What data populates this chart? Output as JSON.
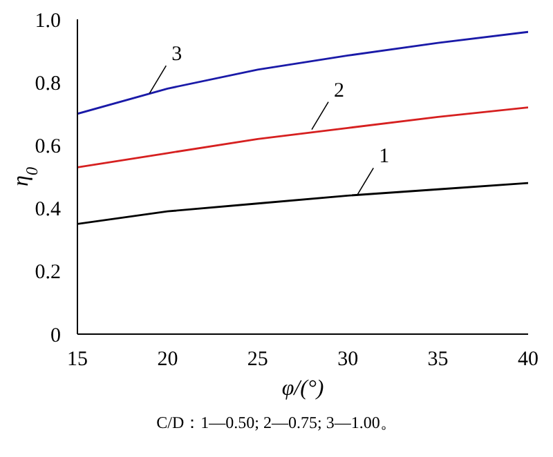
{
  "chart_data": {
    "type": "line",
    "xlabel": "φ/(°)",
    "ylabel": "η$_{0}$",
    "x": [
      15,
      20,
      25,
      30,
      35,
      40
    ],
    "series": [
      {
        "color": "#000000",
        "values": [
          0.35,
          0.39,
          0.415,
          0.44,
          0.46,
          0.48
        ]
      },
      {
        "color": "#d62020",
        "values": [
          0.53,
          0.575,
          0.62,
          0.655,
          0.69,
          0.72
        ]
      },
      {
        "color": "#1a1aa8",
        "values": [
          0.7,
          0.78,
          0.84,
          0.885,
          0.925,
          0.96
        ]
      }
    ],
    "xlim": [
      15,
      40
    ],
    "xticks": [
      15,
      20,
      25,
      30,
      35,
      40
    ],
    "ylim": [
      0,
      1
    ],
    "yticks": [
      0,
      0.2,
      0.4,
      0.6,
      0.8,
      {
        "value": 1,
        "label": "1.0"
      }
    ],
    "grid": false,
    "legend": false,
    "marker": "none",
    "line_style": "solid",
    "annotations": [
      {
        "text": "1",
        "x": 30.5,
        "y": 0.44
      },
      {
        "text": "2",
        "x": 28,
        "y": 0.65
      },
      {
        "text": "3",
        "x": 19,
        "y": 0.765
      },
      "C/D：1—0.50; 2—0.75; 3—1.00。"
    ]
  }
}
